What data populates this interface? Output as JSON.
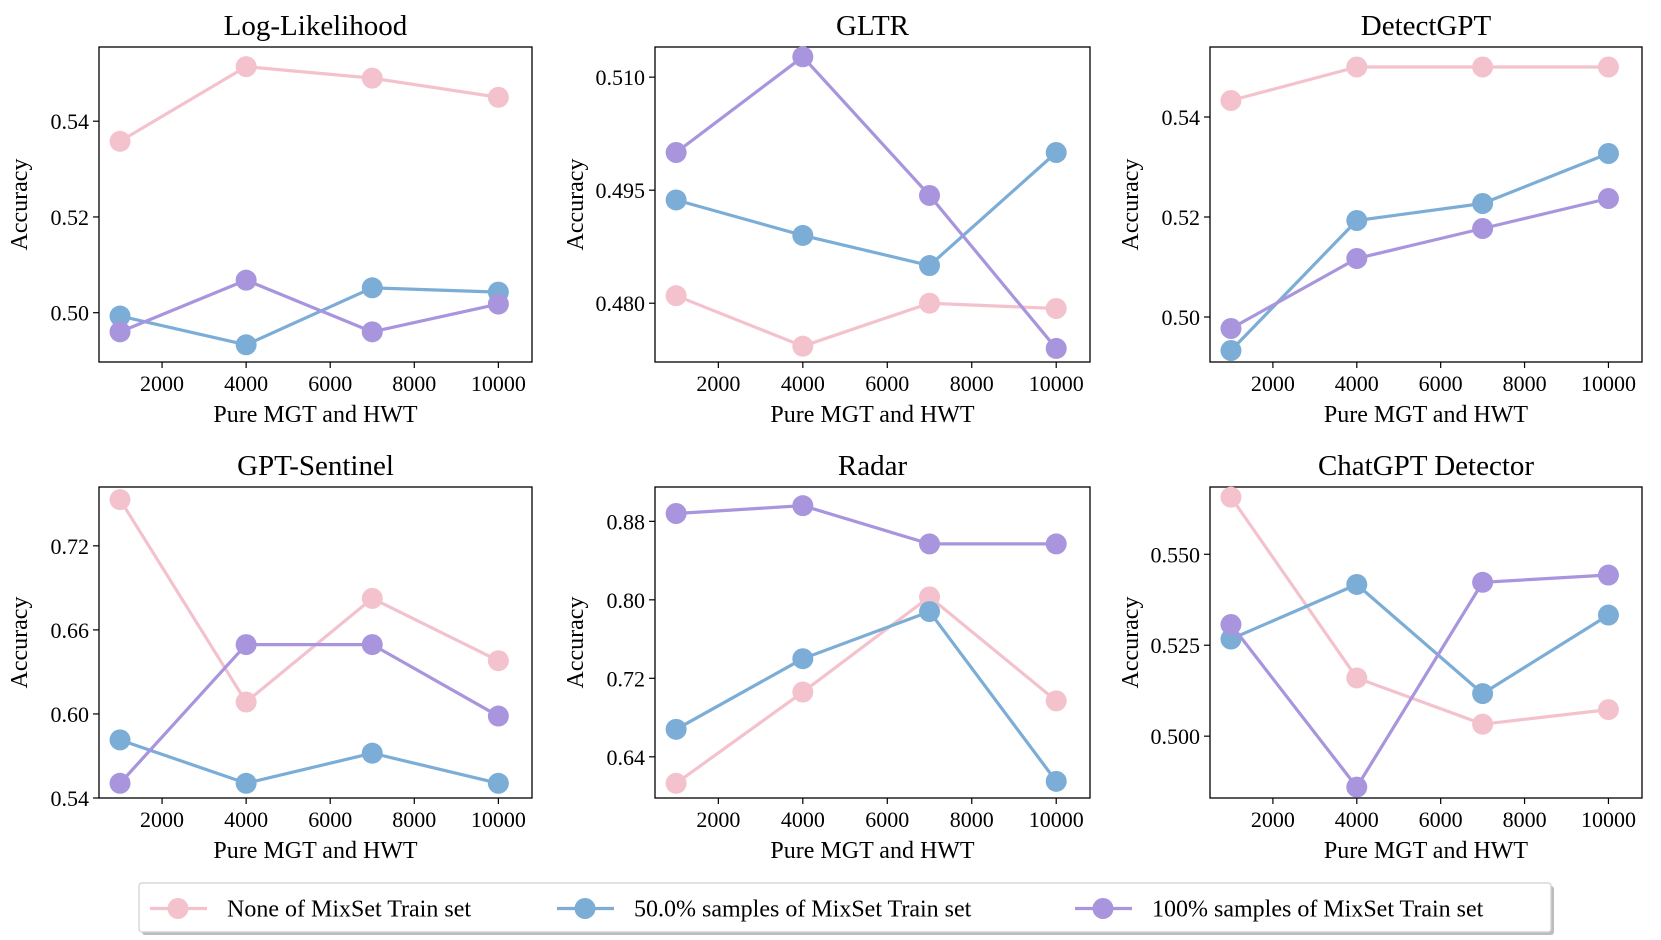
{
  "colors": {
    "none": "#f4c2cc",
    "half": "#7badd6",
    "full": "#a895dd"
  },
  "legend": {
    "items": [
      {
        "key": "none",
        "label": "None of MixSet Train set"
      },
      {
        "key": "half",
        "label": "50.0% samples of MixSet Train set"
      },
      {
        "key": "full",
        "label": "100% samples of MixSet Train set"
      }
    ],
    "placement": "bottom-center"
  },
  "chart_data": [
    {
      "type": "line",
      "title": "Log-Likelihood",
      "xlabel": "Pure MGT and HWT",
      "ylabel": "Accuracy",
      "x": [
        1000,
        4000,
        7000,
        10000
      ],
      "xticks": [
        "2000",
        "4000",
        "6000",
        "8000",
        "10000"
      ],
      "xtick_values": [
        2000,
        4000,
        6000,
        8000,
        10000
      ],
      "xlim": [
        500,
        10800
      ],
      "yticks": [
        "0.50",
        "0.52",
        "0.54"
      ],
      "ytick_values": [
        0.5,
        0.52,
        0.54
      ],
      "ylim": [
        0.4897,
        0.5555
      ],
      "series": [
        {
          "key": "none",
          "name": "None of MixSet Train set",
          "values": [
            0.5358,
            0.5514,
            0.549,
            0.545
          ]
        },
        {
          "key": "half",
          "name": "50.0% samples of MixSet Train set",
          "values": [
            0.4993,
            0.4933,
            0.5052,
            0.5043
          ]
        },
        {
          "key": "full",
          "name": "100% samples of MixSet Train set",
          "values": [
            0.496,
            0.5068,
            0.496,
            0.5018
          ]
        }
      ]
    },
    {
      "type": "line",
      "title": "GLTR",
      "xlabel": "Pure MGT and HWT",
      "ylabel": "Accuracy",
      "x": [
        1000,
        4000,
        7000,
        10000
      ],
      "xticks": [
        "2000",
        "4000",
        "6000",
        "8000",
        "10000"
      ],
      "xtick_values": [
        2000,
        4000,
        6000,
        8000,
        10000
      ],
      "xlim": [
        500,
        10800
      ],
      "yticks": [
        "0.480",
        "0.495",
        "0.510"
      ],
      "ytick_values": [
        0.48,
        0.495,
        0.51
      ],
      "ylim": [
        0.4722,
        0.514
      ],
      "series": [
        {
          "key": "none",
          "name": "None of MixSet Train set",
          "values": [
            0.481,
            0.4743,
            0.48,
            0.4793
          ]
        },
        {
          "key": "half",
          "name": "50.0% samples of MixSet Train set",
          "values": [
            0.4937,
            0.489,
            0.485,
            0.5
          ]
        },
        {
          "key": "full",
          "name": "100% samples of MixSet Train set",
          "values": [
            0.5,
            0.5127,
            0.4943,
            0.474
          ]
        }
      ]
    },
    {
      "type": "line",
      "title": "DetectGPT",
      "xlabel": "Pure MGT and HWT",
      "ylabel": "Accuracy",
      "x": [
        1000,
        4000,
        7000,
        10000
      ],
      "xticks": [
        "2000",
        "4000",
        "6000",
        "8000",
        "10000"
      ],
      "xtick_values": [
        2000,
        4000,
        6000,
        8000,
        10000
      ],
      "xlim": [
        500,
        10800
      ],
      "yticks": [
        "0.50",
        "0.52",
        "0.54"
      ],
      "ytick_values": [
        0.5,
        0.52,
        0.54
      ],
      "ylim": [
        0.491,
        0.554
      ],
      "series": [
        {
          "key": "none",
          "name": "None of MixSet Train set",
          "values": [
            0.5433,
            0.55,
            0.55,
            0.55
          ]
        },
        {
          "key": "half",
          "name": "50.0% samples of MixSet Train set",
          "values": [
            0.4933,
            0.5193,
            0.5227,
            0.5327
          ]
        },
        {
          "key": "full",
          "name": "100% samples of MixSet Train set",
          "values": [
            0.4977,
            0.5117,
            0.5177,
            0.5237
          ]
        }
      ]
    },
    {
      "type": "line",
      "title": "GPT-Sentinel",
      "xlabel": "Pure MGT and HWT",
      "ylabel": "Accuracy",
      "x": [
        1000,
        4000,
        7000,
        10000
      ],
      "xticks": [
        "2000",
        "4000",
        "6000",
        "8000",
        "10000"
      ],
      "xtick_values": [
        2000,
        4000,
        6000,
        8000,
        10000
      ],
      "xlim": [
        500,
        10800
      ],
      "yticks": [
        "0.54",
        "0.60",
        "0.66",
        "0.72"
      ],
      "ytick_values": [
        0.54,
        0.6,
        0.66,
        0.72
      ],
      "ylim": [
        0.54,
        0.762
      ],
      "series": [
        {
          "key": "none",
          "name": "None of MixSet Train set",
          "values": [
            0.753,
            0.6085,
            0.6825,
            0.638
          ]
        },
        {
          "key": "half",
          "name": "50.0% samples of MixSet Train set",
          "values": [
            0.5815,
            0.5505,
            0.572,
            0.5505
          ]
        },
        {
          "key": "full",
          "name": "100% samples of MixSet Train set",
          "values": [
            0.5505,
            0.6495,
            0.6495,
            0.5985
          ]
        }
      ]
    },
    {
      "type": "line",
      "title": "Radar",
      "xlabel": "Pure MGT and HWT",
      "ylabel": "Accuracy",
      "x": [
        1000,
        4000,
        7000,
        10000
      ],
      "xticks": [
        "2000",
        "4000",
        "6000",
        "8000",
        "10000"
      ],
      "xtick_values": [
        2000,
        4000,
        6000,
        8000,
        10000
      ],
      "xlim": [
        500,
        10800
      ],
      "yticks": [
        "0.64",
        "0.72",
        "0.80",
        "0.88"
      ],
      "ytick_values": [
        0.64,
        0.72,
        0.8,
        0.88
      ],
      "ylim": [
        0.598,
        0.915
      ],
      "series": [
        {
          "key": "none",
          "name": "None of MixSet Train set",
          "values": [
            0.613,
            0.706,
            0.803,
            0.697
          ]
        },
        {
          "key": "half",
          "name": "50.0% samples of MixSet Train set",
          "values": [
            0.668,
            0.74,
            0.788,
            0.615
          ]
        },
        {
          "key": "full",
          "name": "100% samples of MixSet Train set",
          "values": [
            0.888,
            0.896,
            0.857,
            0.857
          ]
        }
      ]
    },
    {
      "type": "line",
      "title": "ChatGPT Detector",
      "xlabel": "Pure MGT and HWT",
      "ylabel": "Accuracy",
      "x": [
        1000,
        4000,
        7000,
        10000
      ],
      "xticks": [
        "2000",
        "4000",
        "6000",
        "8000",
        "10000"
      ],
      "xtick_values": [
        2000,
        4000,
        6000,
        8000,
        10000
      ],
      "xlim": [
        500,
        10800
      ],
      "yticks": [
        "0.500",
        "0.525",
        "0.550"
      ],
      "ytick_values": [
        0.5,
        0.525,
        0.55
      ],
      "ylim": [
        0.483,
        0.5685
      ],
      "series": [
        {
          "key": "none",
          "name": "None of MixSet Train set",
          "values": [
            0.5657,
            0.516,
            0.5033,
            0.5073
          ]
        },
        {
          "key": "half",
          "name": "50.0% samples of MixSet Train set",
          "values": [
            0.5267,
            0.5417,
            0.5117,
            0.5333
          ]
        },
        {
          "key": "full",
          "name": "100% samples of MixSet Train set",
          "values": [
            0.5307,
            0.486,
            0.5423,
            0.5443
          ]
        }
      ]
    }
  ]
}
